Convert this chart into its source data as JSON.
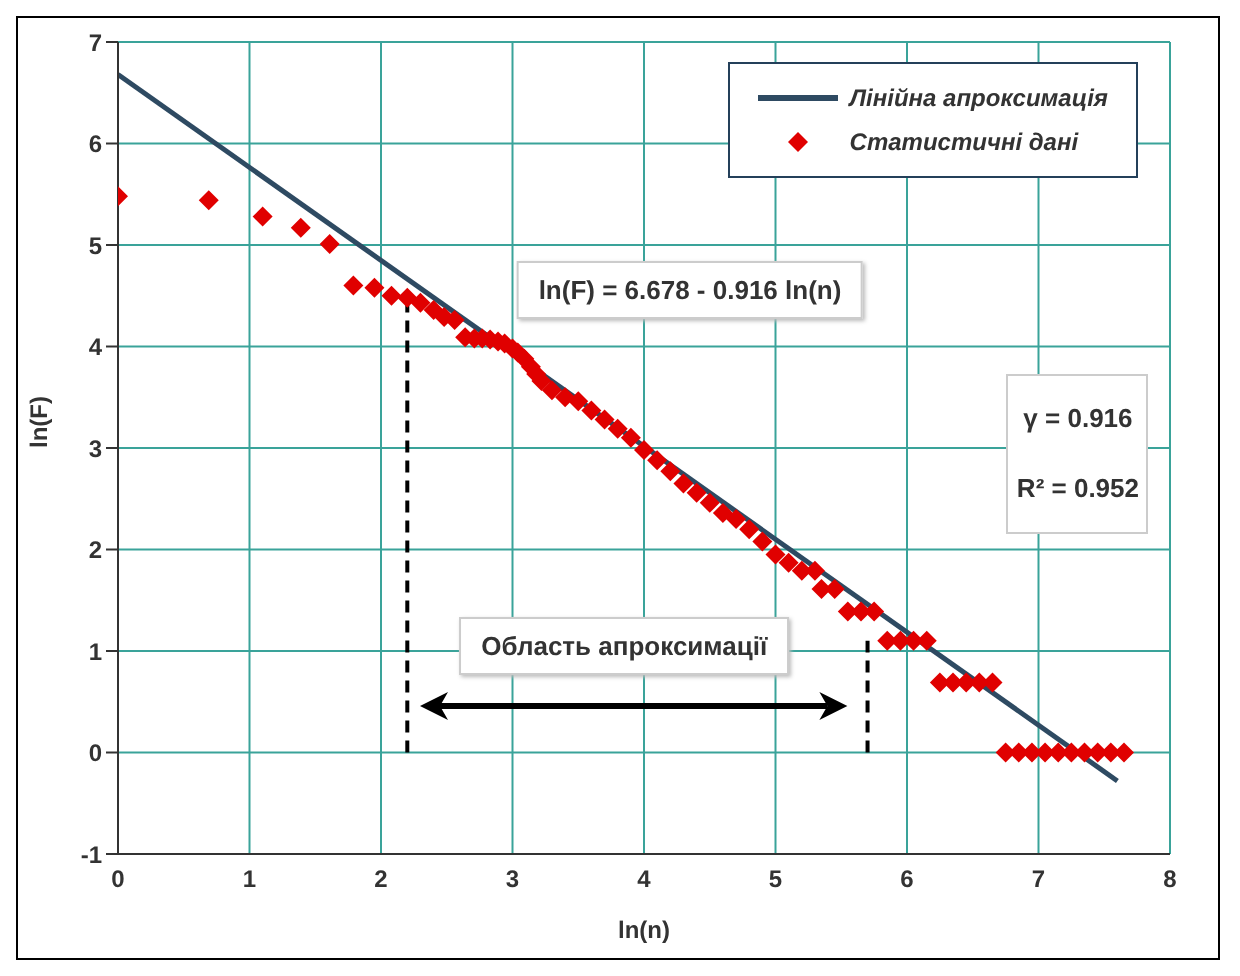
{
  "chart_data": {
    "type": "scatter",
    "xlabel": "ln(n)",
    "ylabel": "ln(F)",
    "xlim": [
      0,
      8
    ],
    "xticks": [
      0,
      1,
      2,
      3,
      4,
      5,
      6,
      7,
      8
    ],
    "ylim": [
      -1,
      7
    ],
    "yticks": [
      -1,
      0,
      1,
      2,
      3,
      4,
      5,
      6,
      7
    ],
    "grid": true,
    "legend": "top right",
    "annotations": [
      "ln(F) = 6.678 - 0.916 ln(n)",
      "γ = 0.916",
      "R² = 0.952",
      "Область апроксимації"
    ],
    "series": [
      {
        "name": "Лінійна апроксимація",
        "type": "line",
        "color": "#2e4a62",
        "marker": "none",
        "x": [
          0,
          7.6
        ],
        "values": [
          6.68,
          -0.28
        ]
      },
      {
        "name": "Статистичні дані",
        "color": "#e00000",
        "marker": "diamond",
        "x": [
          0,
          0.69,
          1.1,
          1.39,
          1.61,
          1.79,
          1.95,
          2.08,
          2.2,
          2.3,
          2.4,
          2.48,
          2.56,
          2.64,
          2.71,
          2.77,
          2.83,
          2.89,
          2.94,
          3.0,
          3.04,
          3.09,
          3.14,
          3.18,
          3.22,
          3.3,
          3.4,
          3.5,
          3.6,
          3.7,
          3.8,
          3.9,
          4.0,
          4.1,
          4.2,
          4.3,
          4.4,
          4.5,
          4.6,
          4.7,
          4.8,
          4.9,
          5.0,
          5.1,
          5.2,
          5.3,
          5.35,
          5.45,
          5.55,
          5.65,
          5.75,
          5.85,
          5.95,
          6.05,
          6.15,
          6.25,
          6.35,
          6.45,
          6.55,
          6.65,
          6.75,
          6.85,
          6.95,
          7.05,
          7.15,
          7.25,
          7.35,
          7.45,
          7.55,
          7.65
        ],
        "values": [
          5.48,
          5.44,
          5.28,
          5.17,
          5.01,
          4.6,
          4.58,
          4.5,
          4.48,
          4.43,
          4.36,
          4.29,
          4.26,
          4.09,
          4.08,
          4.08,
          4.07,
          4.05,
          4.03,
          3.98,
          3.94,
          3.88,
          3.8,
          3.73,
          3.66,
          3.57,
          3.5,
          3.46,
          3.37,
          3.28,
          3.19,
          3.1,
          2.98,
          2.88,
          2.77,
          2.65,
          2.56,
          2.46,
          2.36,
          2.3,
          2.2,
          2.08,
          1.95,
          1.87,
          1.79,
          1.79,
          1.61,
          1.61,
          1.39,
          1.39,
          1.39,
          1.1,
          1.1,
          1.1,
          1.1,
          0.69,
          0.69,
          0.69,
          0.69,
          0.69,
          0,
          0,
          0,
          0,
          0,
          0,
          0,
          0,
          0,
          0
        ]
      },
      {
        "type": "line",
        "color": "#000000",
        "line_style": "dashed",
        "marker": "none",
        "x": [
          2.2,
          2.2
        ],
        "values": [
          0,
          4.48
        ]
      },
      {
        "type": "line",
        "color": "#000000",
        "line_style": "dashed",
        "marker": "none",
        "x": [
          5.7,
          5.7
        ],
        "values": [
          0,
          1.1
        ]
      }
    ]
  }
}
